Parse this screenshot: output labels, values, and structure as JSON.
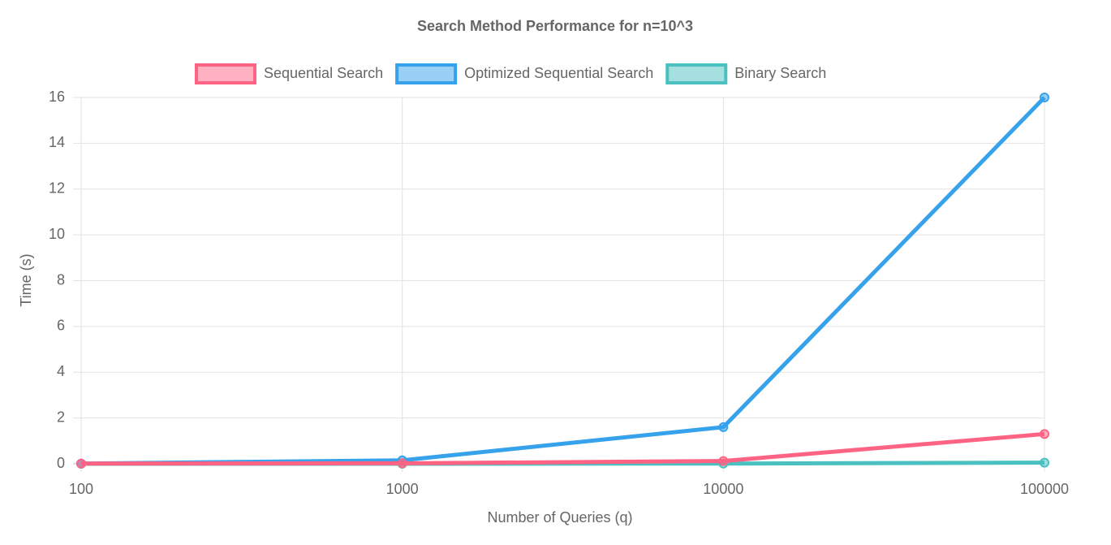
{
  "chart_data": {
    "type": "line",
    "title": "Search Method Performance for n=10^3",
    "x_label": "Number of Queries (q)",
    "y_label": "Time (s)",
    "categories": [
      "100",
      "1000",
      "10000",
      "100000"
    ],
    "series": [
      {
        "name": "Sequential Search",
        "color": "#ff6384",
        "values": [
          0.01,
          0.02,
          0.12,
          1.3
        ]
      },
      {
        "name": "Optimized Sequential Search",
        "color": "#36a2eb",
        "values": [
          0.01,
          0.15,
          1.6,
          16
        ]
      },
      {
        "name": "Binary Search",
        "color": "#4bc0c0",
        "values": [
          0,
          0,
          0.01,
          0.05
        ]
      }
    ],
    "ylim": [
      0,
      16
    ],
    "yticks": [
      0,
      2,
      4,
      6,
      8,
      10,
      12,
      14,
      16
    ],
    "grid": true,
    "legend": "top"
  }
}
